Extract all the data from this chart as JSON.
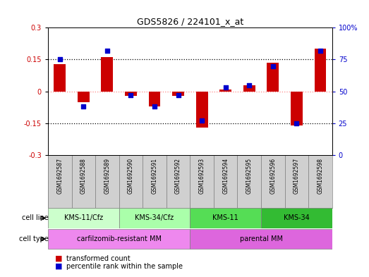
{
  "title": "GDS5826 / 224101_x_at",
  "samples": [
    "GSM1692587",
    "GSM1692588",
    "GSM1692589",
    "GSM1692590",
    "GSM1692591",
    "GSM1692592",
    "GSM1692593",
    "GSM1692594",
    "GSM1692595",
    "GSM1692596",
    "GSM1692597",
    "GSM1692598"
  ],
  "transformed_count": [
    0.13,
    -0.05,
    0.16,
    -0.02,
    -0.07,
    -0.02,
    -0.17,
    0.01,
    0.03,
    0.135,
    -0.16,
    0.2
  ],
  "percentile_rank": [
    75,
    38,
    82,
    47,
    38,
    47,
    27,
    53,
    55,
    70,
    25,
    82
  ],
  "ylim_left": [
    -0.3,
    0.3
  ],
  "ylim_right": [
    0,
    100
  ],
  "yticks_left": [
    -0.3,
    -0.15,
    0,
    0.15,
    0.3
  ],
  "yticks_right": [
    0,
    25,
    50,
    75,
    100
  ],
  "bar_color": "#cc0000",
  "dot_color": "#0000cc",
  "cell_line_groups": [
    {
      "label": "KMS-11/Cfz",
      "start": 0,
      "end": 3,
      "color": "#ccffcc"
    },
    {
      "label": "KMS-34/Cfz",
      "start": 3,
      "end": 6,
      "color": "#aaffaa"
    },
    {
      "label": "KMS-11",
      "start": 6,
      "end": 9,
      "color": "#55dd55"
    },
    {
      "label": "KMS-34",
      "start": 9,
      "end": 12,
      "color": "#33bb33"
    }
  ],
  "cell_type_groups": [
    {
      "label": "carfilzomib-resistant MM",
      "start": 0,
      "end": 6,
      "color": "#ee88ee"
    },
    {
      "label": "parental MM",
      "start": 6,
      "end": 12,
      "color": "#dd66dd"
    }
  ],
  "legend_items": [
    {
      "color": "#cc0000",
      "label": "transformed count"
    },
    {
      "color": "#0000cc",
      "label": "percentile rank within the sample"
    }
  ],
  "cell_line_label": "cell line",
  "cell_type_label": "cell type",
  "gsm_bg_color": "#d0d0d0",
  "zero_line_color": "#ff8888",
  "background_color": "#ffffff"
}
